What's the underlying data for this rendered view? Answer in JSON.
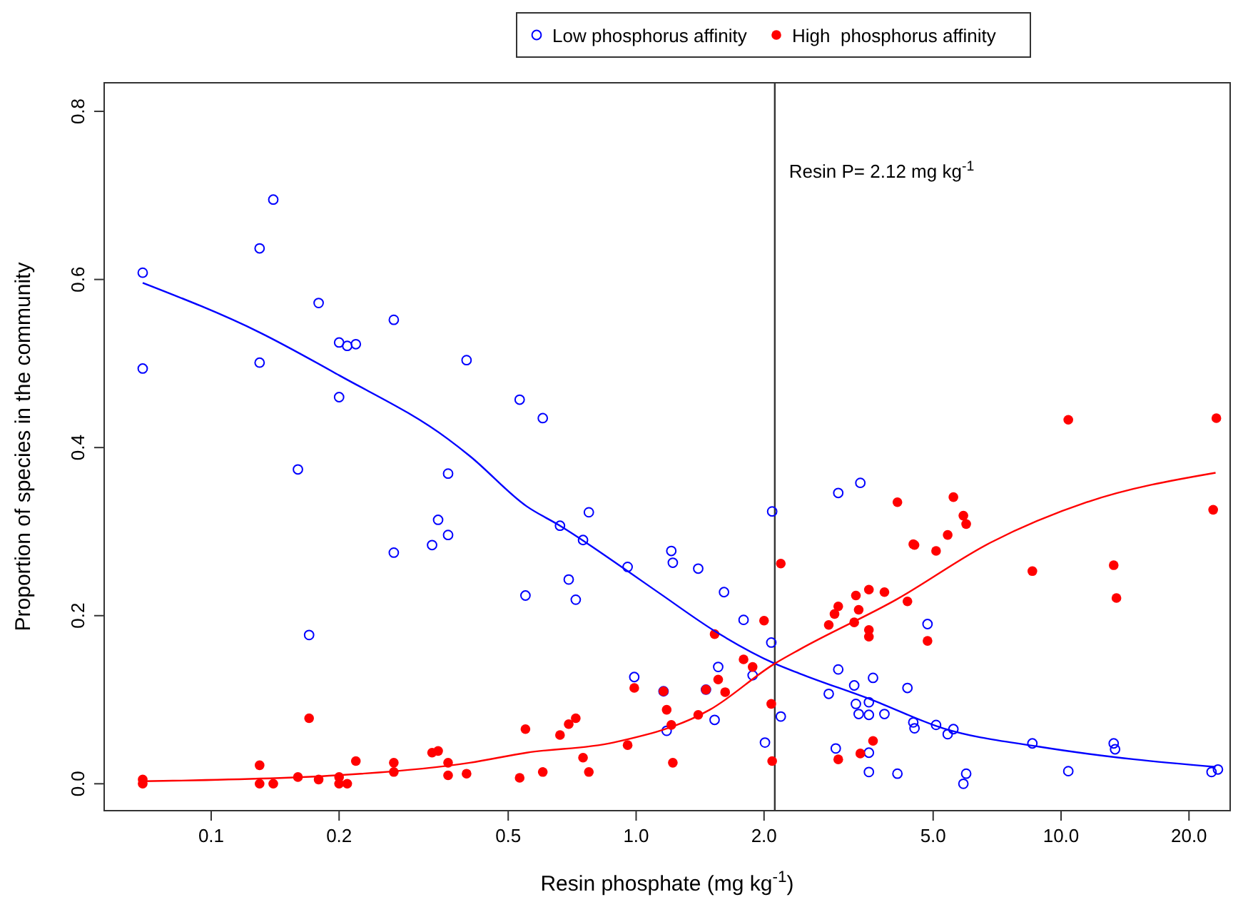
{
  "chart_data": {
    "type": "scatter",
    "xlabel": "Resin phosphate (mg kg$^{-1}$)",
    "ylabel": "Proportion of species in the community",
    "log": "x",
    "xlim": [
      0.056,
      25
    ],
    "ylim": [
      -0.032,
      0.834
    ],
    "xticks": [
      {
        "value": 0.1,
        "label": "0.1"
      },
      {
        "value": 0.2,
        "label": "0.2"
      },
      {
        "value": 0.5,
        "label": "0.5"
      },
      {
        "value": 1,
        "label": "1.0"
      },
      {
        "value": 2,
        "label": "2.0"
      },
      {
        "value": 5,
        "label": "5.0"
      },
      {
        "value": 10,
        "label": "10.0"
      },
      {
        "value": 20,
        "label": "20.0"
      }
    ],
    "yticks": [
      {
        "value": 0,
        "label": "0.0"
      },
      {
        "value": 0.2,
        "label": "0.2"
      },
      {
        "value": 0.4,
        "label": "0.4"
      },
      {
        "value": 0.6,
        "label": "0.6"
      },
      {
        "value": 0.8,
        "label": "0.8"
      }
    ],
    "grid": false,
    "legend": "top",
    "marker": "circle",
    "ref_lines": [
      {
        "axis": "x",
        "value": 2.12,
        "label": "Resin P= 2.12 mg kg$^{-1}$",
        "color": "#333333"
      }
    ],
    "series": [
      {
        "name": "Low phosphorus affinity",
        "color": "#0000ff",
        "x": [
          0.069,
          0.069,
          0.13,
          0.14,
          0.13,
          0.179,
          0.16,
          0.17,
          0.2,
          0.209,
          0.219,
          0.2,
          0.269,
          0.269,
          0.331,
          0.342,
          0.361,
          0.361,
          0.399,
          0.532,
          0.549,
          0.603,
          0.662,
          0.694,
          0.721,
          0.75,
          0.774,
          0.955,
          0.99,
          1.16,
          1.18,
          1.21,
          1.22,
          1.4,
          1.46,
          1.53,
          1.56,
          1.61,
          1.79,
          1.88,
          2.01,
          2.09,
          2.08,
          2.19,
          2.84,
          2.99,
          2.95,
          2.99,
          3.37,
          3.26,
          3.61,
          3.29,
          3.53,
          3.34,
          3.53,
          3.84,
          4.35,
          4.49,
          4.52,
          5.08,
          5.41,
          5.58,
          8.56,
          13.3,
          13.4,
          3.53,
          3.53,
          4.12,
          5.98,
          5.89,
          10.4,
          22.6,
          23.4,
          4.85
        ],
        "values": [
          0.608,
          0.494,
          0.637,
          0.695,
          0.501,
          0.572,
          0.374,
          0.177,
          0.525,
          0.521,
          0.523,
          0.46,
          0.552,
          0.275,
          0.284,
          0.314,
          0.369,
          0.296,
          0.504,
          0.457,
          0.224,
          0.435,
          0.307,
          0.243,
          0.219,
          0.29,
          0.323,
          0.258,
          0.127,
          0.11,
          0.063,
          0.277,
          0.263,
          0.256,
          0.112,
          0.076,
          0.139,
          0.228,
          0.195,
          0.129,
          0.049,
          0.324,
          0.168,
          0.08,
          0.107,
          0.346,
          0.042,
          0.136,
          0.358,
          0.117,
          0.126,
          0.095,
          0.097,
          0.083,
          0.082,
          0.083,
          0.114,
          0.073,
          0.066,
          0.07,
          0.059,
          0.065,
          0.048,
          0.048,
          0.041,
          0.037,
          0.014,
          0.012,
          0.012,
          0,
          0.015,
          0.014,
          0.017,
          0.19
        ]
      },
      {
        "name": "High  phosphorus affinity",
        "color": "#ff0000",
        "x": [
          0.069,
          0.069,
          0.13,
          0.13,
          0.14,
          0.17,
          0.16,
          0.179,
          0.2,
          0.2,
          0.209,
          0.219,
          0.269,
          0.269,
          0.331,
          0.342,
          0.361,
          0.361,
          0.399,
          0.532,
          0.549,
          0.603,
          0.662,
          0.694,
          0.721,
          0.75,
          0.774,
          0.955,
          0.99,
          1.16,
          1.18,
          1.21,
          1.22,
          1.4,
          1.46,
          1.53,
          1.56,
          1.62,
          1.79,
          1.88,
          2.0,
          2.08,
          2.09,
          2.19,
          10.4,
          23.2,
          4.12,
          5.58,
          5.89,
          5.98,
          4.49,
          4.52,
          5.41,
          5.08,
          22.8,
          8.56,
          13.3,
          13.5,
          3.53,
          3.29,
          3.84,
          4.35,
          2.99,
          2.93,
          3.34,
          2.84,
          3.26,
          3.53,
          3.53,
          4.85,
          3.61,
          3.37,
          2.99
        ],
        "values": [
          0.005,
          0,
          0.022,
          0,
          0,
          0.078,
          0.008,
          0.005,
          0.008,
          0,
          0,
          0.027,
          0.025,
          0.014,
          0.037,
          0.039,
          0.025,
          0.01,
          0.012,
          0.007,
          0.065,
          0.014,
          0.058,
          0.071,
          0.078,
          0.031,
          0.014,
          0.046,
          0.114,
          0.11,
          0.088,
          0.07,
          0.025,
          0.082,
          0.112,
          0.178,
          0.124,
          0.109,
          0.148,
          0.139,
          0.194,
          0.095,
          0.027,
          0.262,
          0.433,
          0.435,
          0.335,
          0.341,
          0.319,
          0.309,
          0.285,
          0.284,
          0.296,
          0.277,
          0.326,
          0.253,
          0.26,
          0.221,
          0.231,
          0.224,
          0.228,
          0.217,
          0.211,
          0.202,
          0.207,
          0.189,
          0.192,
          0.183,
          0.175,
          0.17,
          0.051,
          0.036,
          0.029
        ]
      },
      {
        "type": "line",
        "color": "#0000ff",
        "marker": "none",
        "x": [
          0.069,
          0.13,
          0.2,
          0.361,
          0.406,
          0.553,
          0.662,
          0.955,
          1.14,
          1.55,
          2.12,
          2.43,
          3.58,
          5.28,
          8.91,
          14.9,
          23.1
        ],
        "values": [
          0.596,
          0.537,
          0.486,
          0.41,
          0.39,
          0.33,
          0.307,
          0.253,
          0.226,
          0.18,
          0.143,
          0.131,
          0.1,
          0.066,
          0.044,
          0.029,
          0.02
        ]
      },
      {
        "type": "line",
        "color": "#ff0000",
        "marker": "none",
        "x": [
          0.069,
          0.197,
          0.406,
          0.553,
          0.883,
          1.49,
          2.12,
          2.43,
          4.09,
          6.83,
          11.5,
          23.1
        ],
        "values": [
          0.003,
          0.01,
          0.025,
          0.037,
          0.049,
          0.088,
          0.143,
          0.16,
          0.219,
          0.287,
          0.335,
          0.37
        ]
      }
    ]
  }
}
